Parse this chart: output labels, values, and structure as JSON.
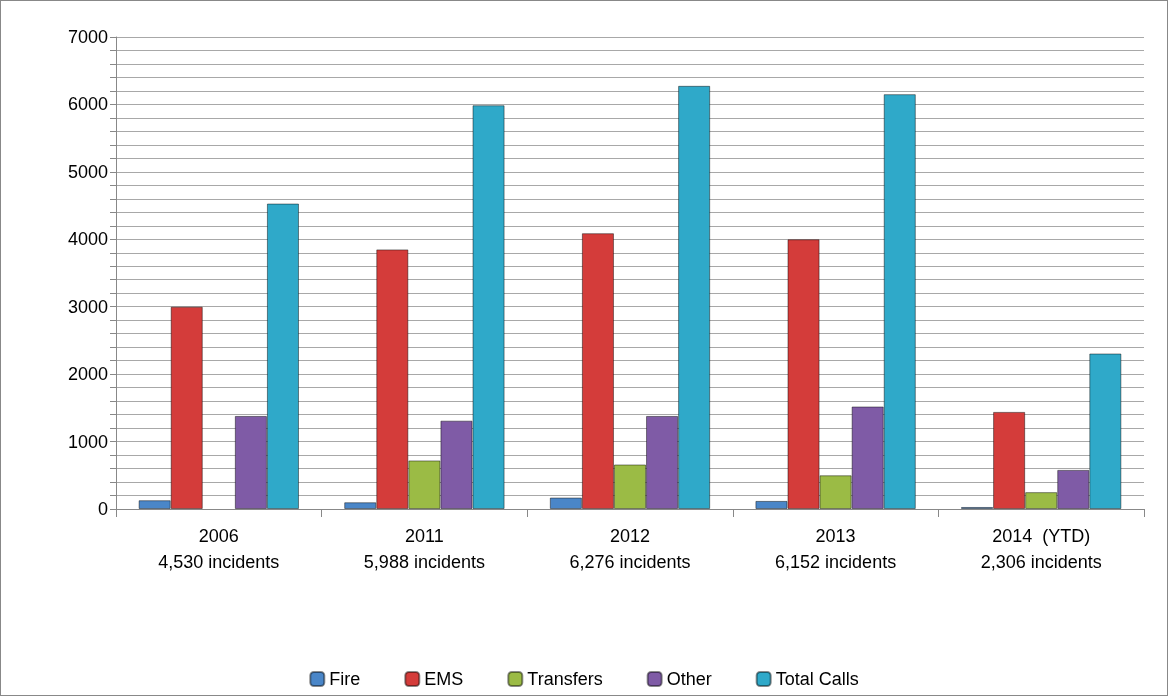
{
  "chart_data": {
    "type": "bar",
    "categories": [
      "2006\n4,530 incidents",
      "2011\n5,988 incidents",
      "2012\n6,276 incidents",
      "2013\n6,152 incidents",
      "2014  (YTD)\n2,306 incidents"
    ],
    "series": [
      {
        "name": "Fire",
        "color": "#4a86c8",
        "values": [
          130,
          100,
          170,
          120,
          30
        ]
      },
      {
        "name": "EMS",
        "color": "#d43c3a",
        "values": [
          3000,
          3850,
          4090,
          4000,
          1440
        ]
      },
      {
        "name": "Transfers",
        "color": "#9bbb45",
        "values": [
          null,
          720,
          660,
          500,
          250
        ]
      },
      {
        "name": "Other",
        "color": "#7f5ba6",
        "values": [
          1380,
          1310,
          1380,
          1520,
          580
        ]
      },
      {
        "name": "Total Calls",
        "color": "#2fa9c9",
        "values": [
          4530,
          5988,
          6276,
          6152,
          2306
        ]
      }
    ],
    "ylim": [
      0,
      7000
    ],
    "yticks": [
      0,
      {
        "value": 200,
        "label": null
      },
      {
        "value": 400,
        "label": null
      },
      {
        "value": 600,
        "label": null
      },
      {
        "value": 800,
        "label": null
      },
      1000,
      {
        "value": 1200,
        "label": null
      },
      {
        "value": 1400,
        "label": null
      },
      {
        "value": 1600,
        "label": null
      },
      {
        "value": 1800,
        "label": null
      },
      2000,
      {
        "value": 2200,
        "label": null
      },
      {
        "value": 2400,
        "label": null
      },
      {
        "value": 2600,
        "label": null
      },
      {
        "value": 2800,
        "label": null
      },
      3000,
      {
        "value": 3200,
        "label": null
      },
      {
        "value": 3400,
        "label": null
      },
      {
        "value": 3600,
        "label": null
      },
      {
        "value": 3800,
        "label": null
      },
      4000,
      {
        "value": 4200,
        "label": null
      },
      {
        "value": 4400,
        "label": null
      },
      {
        "value": 4600,
        "label": null
      },
      {
        "value": 4800,
        "label": null
      },
      5000,
      {
        "value": 5200,
        "label": null
      },
      {
        "value": 5400,
        "label": null
      },
      {
        "value": 5600,
        "label": null
      },
      {
        "value": 5800,
        "label": null
      },
      6000,
      {
        "value": 6200,
        "label": null
      },
      {
        "value": 6400,
        "label": null
      },
      {
        "value": 6600,
        "label": null
      },
      {
        "value": 6800,
        "label": null
      },
      7000
    ],
    "grid": "y",
    "legend": "bottom"
  }
}
